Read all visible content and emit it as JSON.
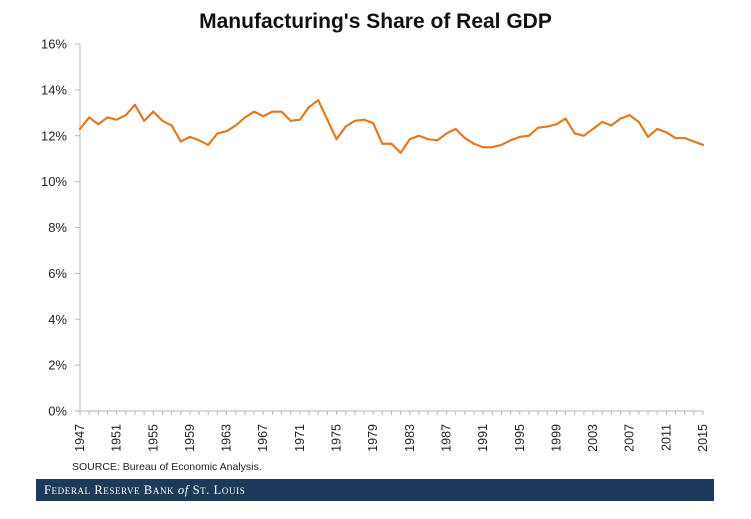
{
  "chart_data": {
    "type": "line",
    "title": "Manufacturing's Share of Real GDP",
    "xlabel": "",
    "ylabel": "",
    "ylim": [
      0,
      16
    ],
    "yticks": [
      "0%",
      "2%",
      "4%",
      "6%",
      "8%",
      "10%",
      "12%",
      "14%",
      "16%"
    ],
    "xticks": [
      "1947",
      "1951",
      "1955",
      "1959",
      "1963",
      "1967",
      "1971",
      "1975",
      "1979",
      "1983",
      "1987",
      "1991",
      "1995",
      "1999",
      "2003",
      "2007",
      "2011",
      "2015"
    ],
    "grid": false,
    "line_color": "#e07b22",
    "x": [
      1947,
      1948,
      1949,
      1950,
      1951,
      1952,
      1953,
      1954,
      1955,
      1956,
      1957,
      1958,
      1959,
      1960,
      1961,
      1962,
      1963,
      1964,
      1965,
      1966,
      1967,
      1968,
      1969,
      1970,
      1971,
      1972,
      1973,
      1974,
      1975,
      1976,
      1977,
      1978,
      1979,
      1980,
      1981,
      1982,
      1983,
      1984,
      1985,
      1986,
      1987,
      1988,
      1989,
      1990,
      1991,
      1992,
      1993,
      1994,
      1995,
      1996,
      1997,
      1998,
      1999,
      2000,
      2001,
      2002,
      2003,
      2004,
      2005,
      2006,
      2007,
      2008,
      2009,
      2010,
      2011,
      2012,
      2013,
      2014,
      2015
    ],
    "series": [
      {
        "values": [
          12.3,
          12.8,
          12.5,
          12.8,
          12.7,
          12.9,
          13.35,
          12.65,
          13.05,
          12.65,
          12.45,
          11.75,
          11.95,
          11.8,
          11.6,
          12.1,
          12.2,
          12.45,
          12.8,
          13.05,
          12.85,
          13.05,
          13.05,
          12.65,
          12.7,
          13.25,
          13.55,
          12.7,
          11.85,
          12.4,
          12.65,
          12.7,
          12.55,
          11.65,
          11.65,
          11.25,
          11.85,
          12.0,
          11.85,
          11.8,
          12.1,
          12.3,
          11.9,
          11.65,
          11.5,
          11.5,
          11.6,
          11.8,
          11.95,
          12.0,
          12.35,
          12.4,
          12.5,
          12.75,
          12.1,
          12.0,
          12.3,
          12.6,
          12.45,
          12.75,
          12.9,
          12.6,
          11.95,
          12.3,
          12.15,
          11.9,
          11.9,
          11.75,
          11.6
        ]
      }
    ],
    "source": "SOURCE: Bureau of Economic Analysis."
  },
  "footer": {
    "part1": "Federal Reserve Bank",
    "part2": "of",
    "part3": "St. Louis"
  }
}
